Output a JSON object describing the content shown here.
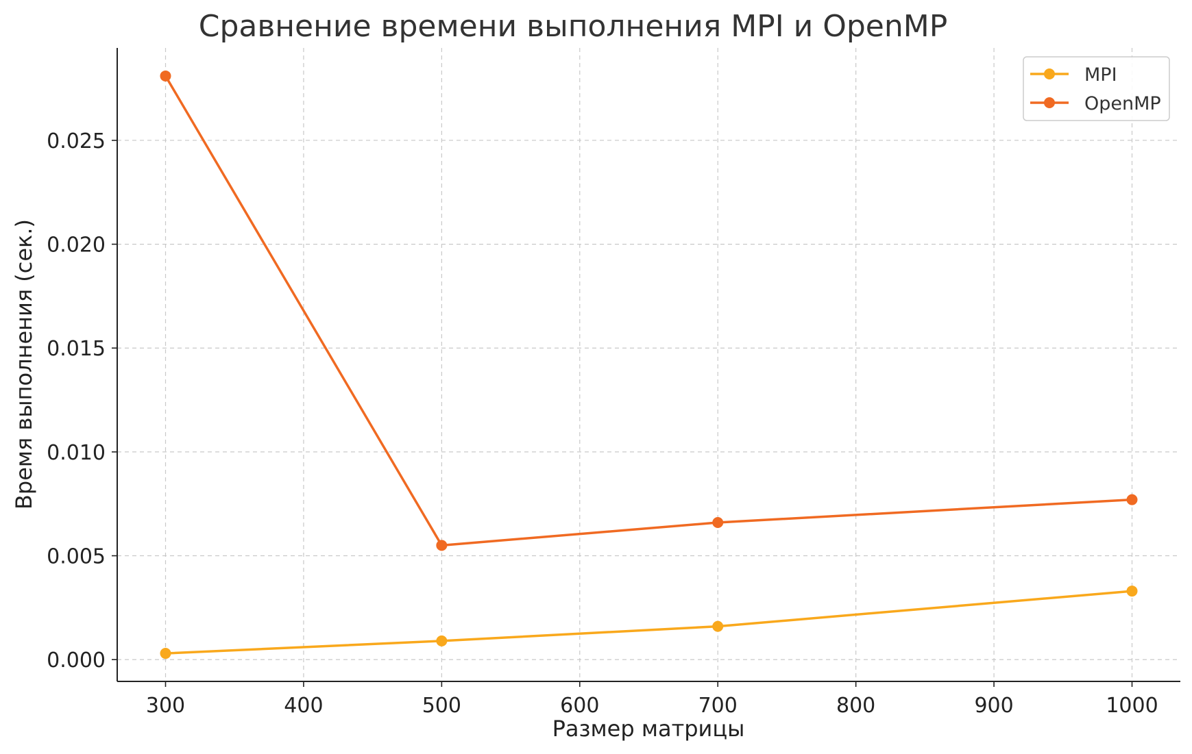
{
  "chart_data": {
    "type": "line",
    "title": "Сравнение времени выполнения MPI и OpenMP",
    "xlabel": "Размер матрицы",
    "ylabel": "Время выполнения (сек.)",
    "x": [
      300,
      500,
      700,
      1000
    ],
    "xlim": [
      265,
      1035
    ],
    "ylim": [
      -0.00105,
      0.02945
    ],
    "x_ticks": [
      300,
      400,
      500,
      600,
      700,
      800,
      900,
      1000
    ],
    "y_ticks": [
      0.0,
      0.005,
      0.01,
      0.015,
      0.02,
      0.025
    ],
    "x_tick_labels": [
      "300",
      "400",
      "500",
      "600",
      "700",
      "800",
      "900",
      "1000"
    ],
    "y_tick_labels": [
      "0.000",
      "0.005",
      "0.010",
      "0.015",
      "0.020",
      "0.025"
    ],
    "grid": true,
    "legend_position": "top-right",
    "series": [
      {
        "name": "MPI",
        "color": "#f9a81c",
        "values": [
          0.0003,
          0.0009,
          0.0016,
          0.0033
        ]
      },
      {
        "name": "OpenMP",
        "color": "#f06a22",
        "values": [
          0.0281,
          0.0055,
          0.0066,
          0.0077
        ]
      }
    ]
  }
}
